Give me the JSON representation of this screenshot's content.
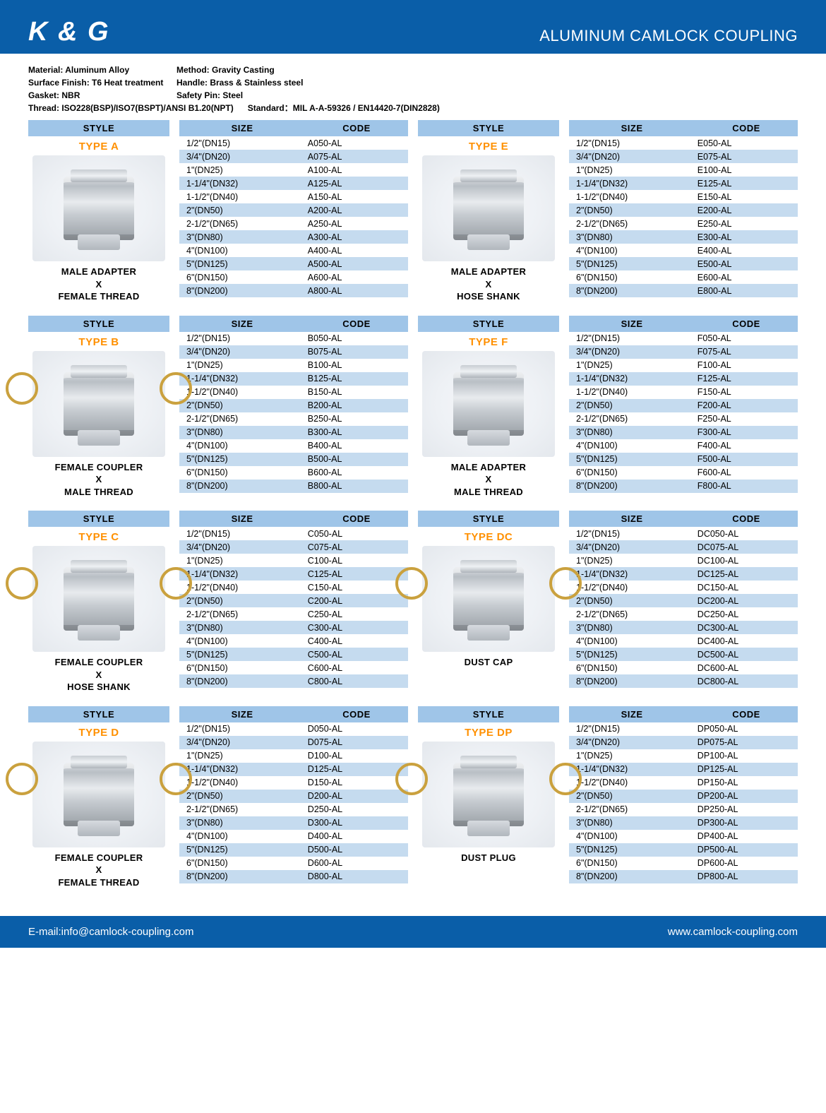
{
  "colors": {
    "brand_bar": "#0a5ea8",
    "header_blue": "#9fc5e8",
    "row_alt": "#c5dbef",
    "type_orange": "#ff9000",
    "text": "#000000",
    "white": "#ffffff"
  },
  "header": {
    "brand": "K & G",
    "title": "ALUMINUM CAMLOCK COUPLING"
  },
  "specs": {
    "material": "Material: Aluminum Alloy",
    "method": "Method: Gravity Casting",
    "surface": "Surface Finish: T6 Heat treatment",
    "handle": "Handle: Brass & Stainless steel",
    "gasket": "Gasket: NBR",
    "pin": "Safety Pin: Steel",
    "thread": "Thread: ISO228(BSP)/ISO7(BSPT)/ANSI B1.20(NPT)",
    "standard": "Standard：MIL A-A-59326 / EN14420-7(DIN2828)"
  },
  "labels": {
    "style": "STYLE",
    "size": "SIZE",
    "code": "CODE"
  },
  "sizes": [
    "1/2\"(DN15)",
    "3/4\"(DN20)",
    "1\"(DN25)",
    "1-1/4\"(DN32)",
    "1-1/2\"(DN40)",
    "2\"(DN50)",
    "2-1/2\"(DN65)",
    "3\"(DN80)",
    "4\"(DN100)",
    "5\"(DN125)",
    "6\"(DN150)",
    "8\"(DN200)"
  ],
  "types": [
    {
      "name": "TYPE A",
      "desc": "MALE ADAPTER\nX\nFEMALE THREAD",
      "handles": false,
      "codes": [
        "A050-AL",
        "A075-AL",
        "A100-AL",
        "A125-AL",
        "A150-AL",
        "A200-AL",
        "A250-AL",
        "A300-AL",
        "A400-AL",
        "A500-AL",
        "A600-AL",
        "A800-AL"
      ]
    },
    {
      "name": "TYPE E",
      "desc": "MALE ADAPTER\nX\nHOSE SHANK",
      "handles": false,
      "codes": [
        "E050-AL",
        "E075-AL",
        "E100-AL",
        "E125-AL",
        "E150-AL",
        "E200-AL",
        "E250-AL",
        "E300-AL",
        "E400-AL",
        "E500-AL",
        "E600-AL",
        "E800-AL"
      ]
    },
    {
      "name": "TYPE B",
      "desc": "FEMALE COUPLER\nX\nMALE THREAD",
      "handles": true,
      "codes": [
        "B050-AL",
        "B075-AL",
        "B100-AL",
        "B125-AL",
        "B150-AL",
        "B200-AL",
        "B250-AL",
        "B300-AL",
        "B400-AL",
        "B500-AL",
        "B600-AL",
        "B800-AL"
      ]
    },
    {
      "name": "TYPE F",
      "desc": "MALE ADAPTER\nX\nMALE THREAD",
      "handles": false,
      "codes": [
        "F050-AL",
        "F075-AL",
        "F100-AL",
        "F125-AL",
        "F150-AL",
        "F200-AL",
        "F250-AL",
        "F300-AL",
        "F400-AL",
        "F500-AL",
        "F600-AL",
        "F800-AL"
      ]
    },
    {
      "name": "TYPE C",
      "desc": "FEMALE COUPLER\nX\nHOSE SHANK",
      "handles": true,
      "codes": [
        "C050-AL",
        "C075-AL",
        "C100-AL",
        "C125-AL",
        "C150-AL",
        "C200-AL",
        "C250-AL",
        "C300-AL",
        "C400-AL",
        "C500-AL",
        "C600-AL",
        "C800-AL"
      ]
    },
    {
      "name": "TYPE DC",
      "desc": "DUST CAP",
      "handles": true,
      "codes": [
        "DC050-AL",
        "DC075-AL",
        "DC100-AL",
        "DC125-AL",
        "DC150-AL",
        "DC200-AL",
        "DC250-AL",
        "DC300-AL",
        "DC400-AL",
        "DC500-AL",
        "DC600-AL",
        "DC800-AL"
      ]
    },
    {
      "name": "TYPE D",
      "desc": "FEMALE COUPLER\nX\nFEMALE THREAD",
      "handles": true,
      "codes": [
        "D050-AL",
        "D075-AL",
        "D100-AL",
        "D125-AL",
        "D150-AL",
        "D200-AL",
        "D250-AL",
        "D300-AL",
        "D400-AL",
        "D500-AL",
        "D600-AL",
        "D800-AL"
      ]
    },
    {
      "name": "TYPE DP",
      "desc": "DUST PLUG",
      "handles": true,
      "codes": [
        "DP050-AL",
        "DP075-AL",
        "DP100-AL",
        "DP125-AL",
        "DP150-AL",
        "DP200-AL",
        "DP250-AL",
        "DP300-AL",
        "DP400-AL",
        "DP500-AL",
        "DP600-AL",
        "DP800-AL"
      ]
    }
  ],
  "footer": {
    "email": "E-mail:info@camlock-coupling.com",
    "website": "www.camlock-coupling.com"
  }
}
